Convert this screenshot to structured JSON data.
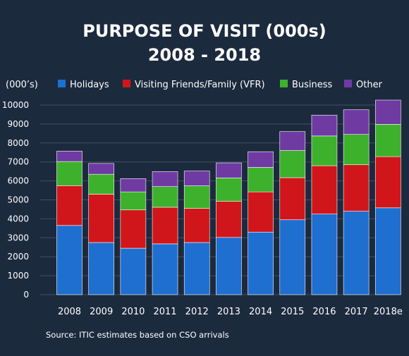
{
  "chart_data": {
    "type": "bar",
    "stacked": true,
    "title_line1": "PURPOSE OF VISIT (000s)",
    "title_line2": "2008 - 2018",
    "ylabel": "(000’s)",
    "ylim": [
      0,
      10000
    ],
    "yticks": [
      0,
      1000,
      2000,
      3000,
      4000,
      5000,
      6000,
      7000,
      8000,
      9000,
      10000
    ],
    "grid": true,
    "legend_position": "top",
    "categories": [
      "2008",
      "2009",
      "2010",
      "2011",
      "2012",
      "2013",
      "2014",
      "2015",
      "2016",
      "2017",
      "2018e"
    ],
    "series": [
      {
        "name": "Holidays",
        "color": "#1e6fd0",
        "values": [
          3650,
          2750,
          2450,
          2680,
          2750,
          3020,
          3300,
          3950,
          4250,
          4400,
          4580
        ]
      },
      {
        "name": "Visiting Friends/Family (VFR)",
        "color": "#d0161b",
        "values": [
          2100,
          2550,
          2020,
          1930,
          1800,
          1900,
          2120,
          2220,
          2550,
          2450,
          2700
        ]
      },
      {
        "name": "Business",
        "color": "#3db12b",
        "values": [
          1270,
          1050,
          950,
          1090,
          1190,
          1240,
          1290,
          1430,
          1570,
          1600,
          1700
        ]
      },
      {
        "name": "Other",
        "color": "#6f3ba3",
        "values": [
          550,
          570,
          700,
          790,
          780,
          790,
          830,
          1000,
          1100,
          1300,
          1280
        ]
      }
    ]
  },
  "footer": {
    "source": "Source: ITIC estimates based on CSO arrivals"
  }
}
